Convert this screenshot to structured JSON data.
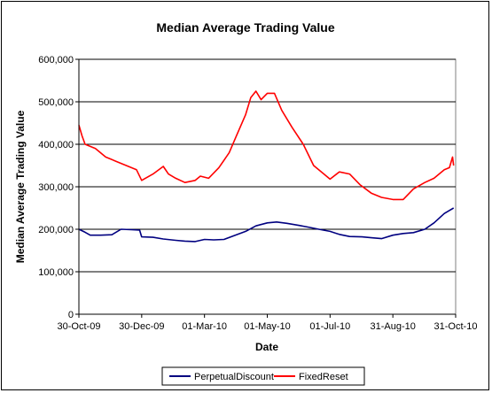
{
  "chart_data": {
    "type": "line",
    "title": "Median Average Trading Value",
    "xlabel": "Date",
    "ylabel": "Median Average Trading Value",
    "ylim": [
      0,
      600000
    ],
    "yticks": [
      "0",
      "100,000",
      "200,000",
      "300,000",
      "400,000",
      "500,000",
      "600,000"
    ],
    "xlim": [
      "2009-10-30",
      "2010-10-31"
    ],
    "xticks": [
      "30-Oct-09",
      "30-Dec-09",
      "01-Mar-10",
      "01-May-10",
      "01-Jul-10",
      "31-Aug-10",
      "31-Oct-10"
    ],
    "grid": "horizontal",
    "legend": "bottom",
    "series": [
      {
        "name": "PerpetualDiscount",
        "color": "#000080",
        "x": [
          "2009-10-30",
          "2009-11-05",
          "2009-11-10",
          "2009-11-20",
          "2009-12-01",
          "2009-12-10",
          "2009-12-20",
          "2009-12-28",
          "2009-12-30",
          "2010-01-10",
          "2010-01-20",
          "2010-02-01",
          "2010-02-10",
          "2010-02-20",
          "2010-03-01",
          "2010-03-10",
          "2010-03-20",
          "2010-04-01",
          "2010-04-10",
          "2010-04-20",
          "2010-05-01",
          "2010-05-10",
          "2010-05-20",
          "2010-06-01",
          "2010-06-10",
          "2010-06-20",
          "2010-07-01",
          "2010-07-10",
          "2010-07-20",
          "2010-08-01",
          "2010-08-10",
          "2010-08-20",
          "2010-08-31",
          "2010-09-10",
          "2010-09-20",
          "2010-10-01",
          "2010-10-10",
          "2010-10-20",
          "2010-10-29"
        ],
        "values": [
          200000,
          193000,
          186000,
          186000,
          187000,
          200000,
          199000,
          198000,
          182000,
          181000,
          177000,
          174000,
          172000,
          171000,
          176000,
          175000,
          176000,
          187000,
          195000,
          208000,
          215000,
          217000,
          214000,
          209000,
          205000,
          200000,
          195000,
          188000,
          183000,
          182000,
          180000,
          178000,
          186000,
          190000,
          192000,
          200000,
          215000,
          237000,
          250000
        ]
      },
      {
        "name": "FixedReset",
        "color": "#ff0000",
        "x": [
          "2009-10-30",
          "2009-11-02",
          "2009-11-05",
          "2009-11-15",
          "2009-11-25",
          "2009-12-05",
          "2009-12-15",
          "2009-12-25",
          "2009-12-30",
          "2010-01-10",
          "2010-01-20",
          "2010-01-25",
          "2010-02-01",
          "2010-02-10",
          "2010-02-20",
          "2010-02-25",
          "2010-03-05",
          "2010-03-15",
          "2010-03-25",
          "2010-04-01",
          "2010-04-10",
          "2010-04-15",
          "2010-04-20",
          "2010-04-25",
          "2010-05-01",
          "2010-05-08",
          "2010-05-15",
          "2010-05-25",
          "2010-06-05",
          "2010-06-15",
          "2010-06-25",
          "2010-07-01",
          "2010-07-10",
          "2010-07-20",
          "2010-07-30",
          "2010-08-10",
          "2010-08-20",
          "2010-08-31",
          "2010-09-10",
          "2010-09-20",
          "2010-10-01",
          "2010-10-10",
          "2010-10-20",
          "2010-10-25",
          "2010-10-28",
          "2010-10-29"
        ],
        "values": [
          445000,
          420000,
          400000,
          390000,
          370000,
          360000,
          350000,
          340000,
          315000,
          330000,
          348000,
          330000,
          320000,
          310000,
          315000,
          325000,
          320000,
          345000,
          380000,
          420000,
          470000,
          510000,
          525000,
          505000,
          520000,
          520000,
          480000,
          440000,
          400000,
          350000,
          330000,
          318000,
          335000,
          330000,
          305000,
          285000,
          275000,
          270000,
          270000,
          295000,
          310000,
          320000,
          340000,
          345000,
          370000,
          350000
        ]
      }
    ]
  }
}
